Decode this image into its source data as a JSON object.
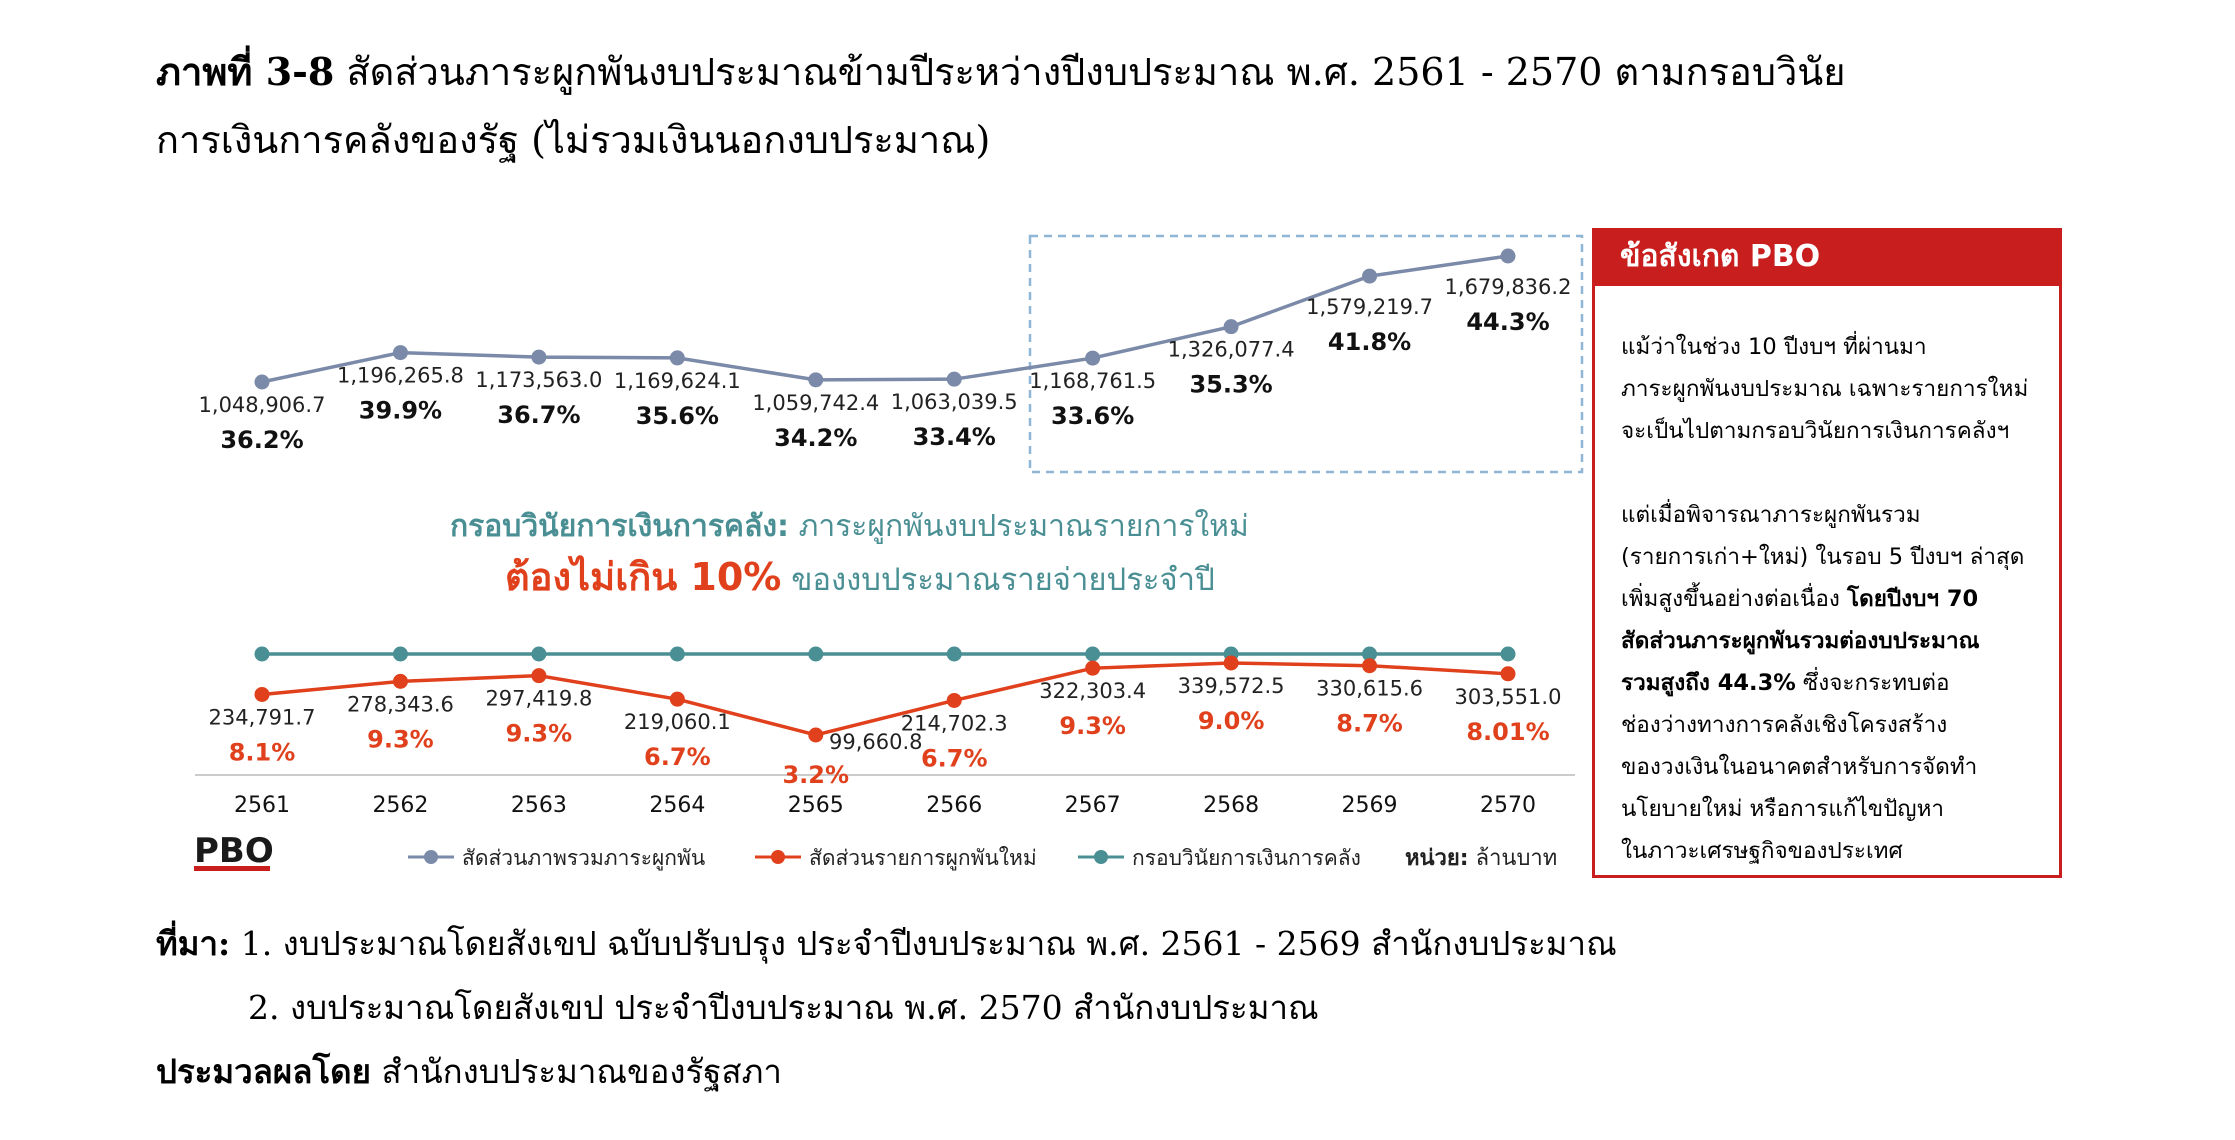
{
  "title": {
    "bold": "ภาพที่ 3-8",
    "text": " สัดส่วนภาระผูกพันงบประมาณข้ามปีระหว่างปีงบประมาณ พ.ศ. 2561 - 2570 ตามกรอบวินัย",
    "line2": "การเงินการคลังของรัฐ (ไม่รวมเงินนอกงบประมาณ)"
  },
  "colors": {
    "total": "#7a8aa8",
    "new": "#e0401c",
    "frame": "#4a8f94",
    "pbo_red": "#c81e1e",
    "highlight_box": "#8fb6d4"
  },
  "chart_data": {
    "type": "line",
    "categories": [
      "2561",
      "2562",
      "2563",
      "2564",
      "2565",
      "2566",
      "2567",
      "2568",
      "2569",
      "2570"
    ],
    "series": [
      {
        "name": "สัดส่วนภาพรวมภาระผูกพัน",
        "values": [
          1048906.7,
          1196265.8,
          1173563.0,
          1169624.1,
          1059742.4,
          1063039.5,
          1168761.5,
          1326077.4,
          1579219.7,
          1679836.2
        ],
        "value_labels": [
          "1,048,906.7",
          "1,196,265.8",
          "1,173,563.0",
          "1,169,624.1",
          "1,059,742.4",
          "1,063,039.5",
          "1,168,761.5",
          "1,326,077.4",
          "1,579,219.7",
          "1,679,836.2"
        ],
        "percent_labels": [
          "36.2%",
          "39.9%",
          "36.7%",
          "35.6%",
          "34.2%",
          "33.4%",
          "33.6%",
          "35.3%",
          "41.8%",
          "44.3%"
        ]
      },
      {
        "name": "สัดส่วนรายการผูกพันใหม่",
        "values": [
          234791.7,
          278343.6,
          297419.8,
          219060.1,
          99660.8,
          214702.3,
          322303.4,
          339572.5,
          330615.6,
          303551.0
        ],
        "value_labels": [
          "234,791.7",
          "278,343.6",
          "297,419.8",
          "219,060.1",
          "99,660.8",
          "214,702.3",
          "322,303.4",
          "339,572.5",
          "330,615.6",
          "303,551.0"
        ],
        "percent_labels": [
          "8.1%",
          "9.3%",
          "9.3%",
          "6.7%",
          "3.2%",
          "6.7%",
          "9.3%",
          "9.0%",
          "8.7%",
          "8.01%"
        ]
      },
      {
        "name": "กรอบวินัยการเงินการคลัง",
        "values": [
          10,
          10,
          10,
          10,
          10,
          10,
          10,
          10,
          10,
          10
        ]
      }
    ],
    "unit_label_bold": "หน่วย:",
    "unit_label": " ล้านบาท",
    "annotation": {
      "line1_bold": "กรอบวินัยการเงินการคลัง:",
      "line1": " ภาระผูกพันงบประมาณรายการใหม่",
      "line2_bold": "ต้องไม่เกิน 10%",
      "line2": " ของงบประมาณรายจ่ายประจำปี"
    },
    "logo_text": "PBO"
  },
  "pbo_note": {
    "header": "ข้อสังเกต PBO",
    "para1": [
      "แม้ว่าในช่วง 10 ปีงบฯ ที่ผ่านมา",
      "ภาระผูกพันงบประมาณ เฉพาะรายการใหม่",
      "จะเป็นไปตามกรอบวินัยการเงินการคลังฯ"
    ],
    "para2_l1": "แต่เมื่อพิจารณาภาระผูกพันรวม",
    "para2_l2": "(รายการเก่า+ใหม่) ในรอบ 5 ปีงบฯ ล่าสุด",
    "para2_l3a": "เพิ่มสูงขึ้นอย่างต่อเนื่อง ",
    "para2_l3b": "โดยปีงบฯ 70",
    "para2_l4": "สัดส่วนภาระผูกพันรวมต่องบประมาณ",
    "para2_l5a": "รวมสูงถึง 44.3%",
    "para2_l5b": " ซึ่งจะกระทบต่อ",
    "para2_l6": "ช่องว่างทางการคลังเชิงโครงสร้าง",
    "para2_l7": "ของวงเงินในอนาคตสำหรับการจัดทำ",
    "para2_l8": "นโยบายใหม่ หรือการแก้ไขปัญหา",
    "para2_l9": "ในภาวะเศรษฐกิจของประเทศ"
  },
  "source": {
    "label": "ที่มา:",
    "item1": " 1. งบประมาณโดยสังเขป ฉบับปรับปรุง ประจำปีงบประมาณ พ.ศ. 2561 - 2569 สำนักงบประมาณ",
    "item2": "2. งบประมาณโดยสังเขป ประจำปีงบประมาณ พ.ศ. 2570 สำนักงบประมาณ",
    "processed_label": "ประมวลผลโดย",
    "processed_by": " สำนักงบประมาณของรัฐสภา"
  }
}
